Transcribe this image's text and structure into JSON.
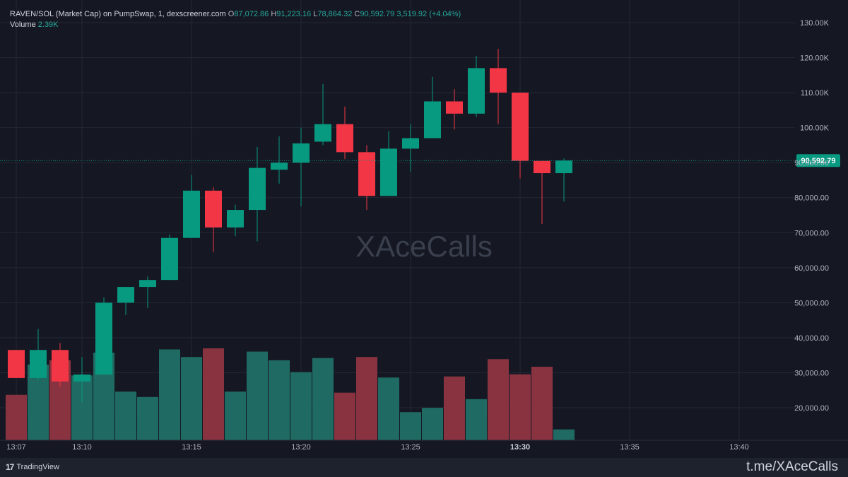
{
  "header": {
    "symbol": "RAVEN/SOL (Market Cap) on PumpSwap, 1, dexscreener.com",
    "o_label": "O",
    "o_value": "87,072.86",
    "h_label": "H",
    "h_value": "91,223.16",
    "l_label": "L",
    "l_value": "78,864.32",
    "c_label": "C",
    "c_value": "90,592.79",
    "change": "3,519.92 (+4.04%)",
    "volume_label": "Volume",
    "volume_value": "2.39K"
  },
  "watermark": "XAceCalls",
  "footer": {
    "brand": "TradingView",
    "channel": "t.me/XAceCalls"
  },
  "colors": {
    "background": "#151823",
    "up": "#089981",
    "down": "#f23645",
    "volume_up": "#1f6b63",
    "volume_down": "#8a3340",
    "grid": "#232734",
    "price_tag": "#089981"
  },
  "chart_data": {
    "type": "candlestick",
    "time_axis": [
      "13:07",
      "13:10",
      "13:15",
      "13:20",
      "13:25",
      "13:30",
      "13:35",
      "13:40"
    ],
    "time_axis_bold": [
      "13:30"
    ],
    "y_ticks": [
      "20,000.00",
      "30,000.00",
      "40,000.00",
      "50,000.00",
      "60,000.00",
      "70,000.00",
      "80,000.00",
      "90,000.00",
      "100.00K",
      "110.00K",
      "120.00K",
      "130.00K"
    ],
    "ylim": [
      11000,
      133000
    ],
    "last_price_label": "90,592.79",
    "last_price": 90592.79,
    "candles": [
      {
        "o": 36500,
        "h": 36500,
        "l": 28500,
        "c": 28500
      },
      {
        "o": 28500,
        "h": 42500,
        "l": 28000,
        "c": 36500
      },
      {
        "o": 36500,
        "h": 38500,
        "l": 26000,
        "c": 27500
      },
      {
        "o": 27500,
        "h": 34500,
        "l": 21500,
        "c": 29500
      },
      {
        "o": 29500,
        "h": 51500,
        "l": 29500,
        "c": 50000
      },
      {
        "o": 50000,
        "h": 54500,
        "l": 46500,
        "c": 54500
      },
      {
        "o": 54500,
        "h": 57500,
        "l": 48500,
        "c": 56500
      },
      {
        "o": 56500,
        "h": 69500,
        "l": 56500,
        "c": 68500
      },
      {
        "o": 68500,
        "h": 86500,
        "l": 68500,
        "c": 82000
      },
      {
        "o": 82000,
        "h": 83000,
        "l": 64500,
        "c": 71500
      },
      {
        "o": 71500,
        "h": 78000,
        "l": 69000,
        "c": 76500
      },
      {
        "o": 76500,
        "h": 94500,
        "l": 67500,
        "c": 88500
      },
      {
        "o": 88000,
        "h": 97500,
        "l": 84000,
        "c": 90000
      },
      {
        "o": 90000,
        "h": 100000,
        "l": 77500,
        "c": 95500
      },
      {
        "o": 96000,
        "h": 112500,
        "l": 95000,
        "c": 101000
      },
      {
        "o": 101000,
        "h": 106000,
        "l": 91000,
        "c": 93000
      },
      {
        "o": 93000,
        "h": 95000,
        "l": 76500,
        "c": 80500
      },
      {
        "o": 80500,
        "h": 99000,
        "l": 80500,
        "c": 94000
      },
      {
        "o": 94000,
        "h": 101000,
        "l": 87500,
        "c": 97000
      },
      {
        "o": 97000,
        "h": 114500,
        "l": 97000,
        "c": 107500
      },
      {
        "o": 107500,
        "h": 111000,
        "l": 99500,
        "c": 104000
      },
      {
        "o": 104000,
        "h": 120500,
        "l": 103000,
        "c": 117000
      },
      {
        "o": 117000,
        "h": 122500,
        "l": 101000,
        "c": 110000
      },
      {
        "o": 110000,
        "h": 110000,
        "l": 85500,
        "c": 90500
      },
      {
        "o": 90500,
        "h": 90500,
        "l": 72500,
        "c": 87000
      },
      {
        "o": 87000,
        "h": 91200,
        "l": 78900,
        "c": 90600
      }
    ],
    "volume": [
      0.42,
      0.7,
      0.74,
      0.6,
      0.81,
      0.45,
      0.4,
      0.84,
      0.77,
      0.85,
      0.45,
      0.82,
      0.74,
      0.63,
      0.76,
      0.44,
      0.77,
      0.58,
      0.26,
      0.3,
      0.59,
      0.38,
      0.75,
      0.61,
      0.68,
      0.1
    ]
  }
}
